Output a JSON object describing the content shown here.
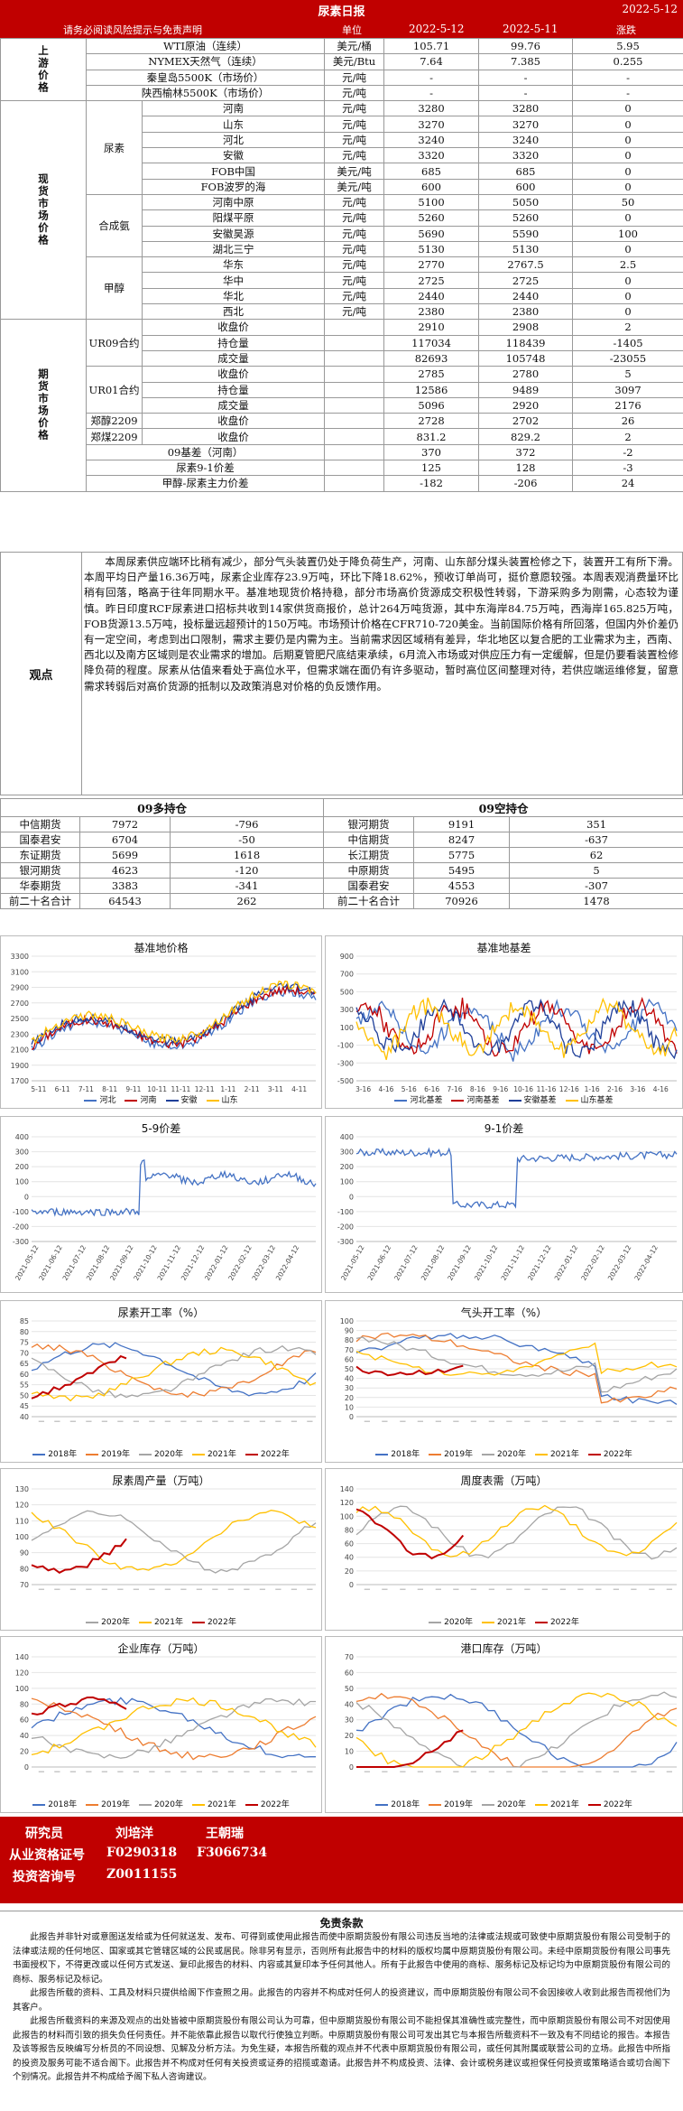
{
  "title": "尿素日报",
  "report_date": "2022-5-12",
  "header": {
    "notice": "请务必阅读风险提示与免责声明",
    "unit": "单位",
    "d1": "2022-5-12",
    "d2": "2022-5-11",
    "chg": "涨跌"
  },
  "sections": {
    "upstream": "上游价格",
    "spot": "现货市场价格",
    "futures": "期货市场价格"
  },
  "groups": {
    "urea": "尿素",
    "ammonia": "合成氨",
    "methanol": "甲醇",
    "ur09": "UR09合约",
    "ur01": "UR01合约",
    "zc2209": "郑醇2209",
    "zm2209": "郑煤2209"
  },
  "upstream_rows": [
    {
      "name": "WTI原油（连续）",
      "unit": "美元/桶",
      "v1": "105.71",
      "v2": "99.76",
      "chg": "5.95"
    },
    {
      "name": "NYMEX天然气（连续）",
      "unit": "美元/Btu",
      "v1": "7.64",
      "v2": "7.385",
      "chg": "0.255"
    },
    {
      "name": "秦皇岛5500K（市场价）",
      "unit": "元/吨",
      "v1": "-",
      "v2": "-",
      "chg": "-"
    },
    {
      "name": "陕西榆林5500K（市场价）",
      "unit": "元/吨",
      "v1": "-",
      "v2": "-",
      "chg": "-"
    }
  ],
  "urea_rows": [
    {
      "name": "河南",
      "unit": "元/吨",
      "v1": "3280",
      "v2": "3280",
      "chg": "0"
    },
    {
      "name": "山东",
      "unit": "元/吨",
      "v1": "3270",
      "v2": "3270",
      "chg": "0"
    },
    {
      "name": "河北",
      "unit": "元/吨",
      "v1": "3240",
      "v2": "3240",
      "chg": "0"
    },
    {
      "name": "安徽",
      "unit": "元/吨",
      "v1": "3320",
      "v2": "3320",
      "chg": "0"
    },
    {
      "name": "FOB中国",
      "unit": "美元/吨",
      "v1": "685",
      "v2": "685",
      "chg": "0"
    },
    {
      "name": "FOB波罗的海",
      "unit": "美元/吨",
      "v1": "600",
      "v2": "600",
      "chg": "0"
    }
  ],
  "ammonia_rows": [
    {
      "name": "河南中原",
      "unit": "元/吨",
      "v1": "5100",
      "v2": "5050",
      "chg": "50"
    },
    {
      "name": "阳煤平原",
      "unit": "元/吨",
      "v1": "5260",
      "v2": "5260",
      "chg": "0"
    },
    {
      "name": "安徽昊源",
      "unit": "元/吨",
      "v1": "5690",
      "v2": "5590",
      "chg": "100"
    },
    {
      "name": "湖北三宁",
      "unit": "元/吨",
      "v1": "5130",
      "v2": "5130",
      "chg": "0"
    }
  ],
  "methanol_rows": [
    {
      "name": "华东",
      "unit": "元/吨",
      "v1": "2770",
      "v2": "2767.5",
      "chg": "2.5"
    },
    {
      "name": "华中",
      "unit": "元/吨",
      "v1": "2725",
      "v2": "2725",
      "chg": "0"
    },
    {
      "name": "华北",
      "unit": "元/吨",
      "v1": "2440",
      "v2": "2440",
      "chg": "0"
    },
    {
      "name": "西北",
      "unit": "元/吨",
      "v1": "2380",
      "v2": "2380",
      "chg": "0"
    }
  ],
  "ur09_rows": [
    {
      "name": "收盘价",
      "unit": "",
      "v1": "2910",
      "v2": "2908",
      "chg": "2"
    },
    {
      "name": "持仓量",
      "unit": "",
      "v1": "117034",
      "v2": "118439",
      "chg": "-1405"
    },
    {
      "name": "成交量",
      "unit": "",
      "v1": "82693",
      "v2": "105748",
      "chg": "-23055"
    }
  ],
  "ur01_rows": [
    {
      "name": "收盘价",
      "unit": "",
      "v1": "2785",
      "v2": "2780",
      "chg": "5"
    },
    {
      "name": "持仓量",
      "unit": "",
      "v1": "12586",
      "v2": "9489",
      "chg": "3097"
    },
    {
      "name": "成交量",
      "unit": "",
      "v1": "5096",
      "v2": "2920",
      "chg": "2176"
    }
  ],
  "zc_row": {
    "name": "收盘价",
    "unit": "",
    "v1": "2728",
    "v2": "2702",
    "chg": "26"
  },
  "zm_row": {
    "name": "收盘价",
    "unit": "",
    "v1": "831.2",
    "v2": "829.2",
    "chg": "2"
  },
  "spread_rows": [
    {
      "name": "09基差（河南）",
      "unit": "",
      "v1": "370",
      "v2": "372",
      "chg": "-2"
    },
    {
      "name": "尿素9-1价差",
      "unit": "",
      "v1": "125",
      "v2": "128",
      "chg": "-3"
    },
    {
      "name": "甲醇-尿素主力价差",
      "unit": "",
      "v1": "-182",
      "v2": "-206",
      "chg": "24"
    }
  ],
  "commentary": {
    "label": "观点",
    "text": "本周尿素供应端环比稍有减少，部分气头装置仍处于降负荷生产，河南、山东部分煤头装置检修之下，装置开工有所下滑。本周平均日产量16.36万吨，尿素企业库存23.9万吨，环比下降18.62%，预收订单尚可，挺价意愿较强。本周表观消费量环比稍有回落，略高于往年同期水平。基准地现货价格持稳，部分市场高价货源成交积极性转弱，下游采购多为刚需，心态较为谨慎。昨日印度RCF尿素进口招标共收到14家供货商报价，总计264万吨货源，其中东海岸84.75万吨，西海岸165.825万吨，FOB货源13.5万吨，投标量远超预计的150万吨。市场预计价格在CFR710-720美金。当前国际价格有所回落，但国内外价差仍有一定空间，考虑到出口限制，需求主要仍是内需为主。当前需求因区域稍有差异，华北地区以复合肥的工业需求为主，西南、西北以及南方区域则是农业需求的增加。后期夏管肥尺底结束承续，6月流入市场或对供应压力有一定缓解，但是仍要看装置检修降负荷的程度。尿素从估值来看处于高位水平，但需求端在面仍有许多驱动，暂时高位区间整理对待，若供应端运维修复，留意需求转弱后对高价货源的抵制以及政策消息对价格的负反馈作用。"
  },
  "holdings": {
    "long_title": "09多持仓",
    "short_title": "09空持仓",
    "long": [
      {
        "name": "中信期货",
        "v": "7972",
        "chg": "-796"
      },
      {
        "name": "国泰君安",
        "v": "6704",
        "chg": "-50"
      },
      {
        "name": "东证期货",
        "v": "5699",
        "chg": "1618"
      },
      {
        "name": "银河期货",
        "v": "4623",
        "chg": "-120"
      },
      {
        "name": "华泰期货",
        "v": "3383",
        "chg": "-341"
      },
      {
        "name": "前二十名合计",
        "v": "64543",
        "chg": "262"
      }
    ],
    "short": [
      {
        "name": "银河期货",
        "v": "9191",
        "chg": "351"
      },
      {
        "name": "中信期货",
        "v": "8247",
        "chg": "-637"
      },
      {
        "name": "长江期货",
        "v": "5775",
        "chg": "62"
      },
      {
        "name": "中原期货",
        "v": "5495",
        "chg": "5"
      },
      {
        "name": "国泰君安",
        "v": "4553",
        "chg": "-307"
      },
      {
        "name": "前二十名合计",
        "v": "70926",
        "chg": "1478"
      }
    ]
  },
  "colors": {
    "red": "#c00000",
    "blue": "#4472c4",
    "orange": "#ed7d31",
    "gray": "#a5a5a5",
    "gold": "#ffc000",
    "darkblue": "#1f3f99"
  },
  "charts": {
    "basis_price": {
      "title": "基准地价格",
      "yticks": [
        "3300",
        "3100",
        "2900",
        "2700",
        "2500",
        "2300",
        "2100",
        "1900",
        "1700"
      ],
      "xticks": [
        "5-11",
        "6-11",
        "7-11",
        "8-11",
        "9-11",
        "10-11",
        "11-11",
        "12-11",
        "1-11",
        "2-11",
        "3-11",
        "4-11"
      ],
      "legend": [
        "河北",
        "河南",
        "安徽",
        "山东"
      ]
    },
    "basis_diff": {
      "title": "基准地基差",
      "yticks": [
        "900",
        "700",
        "500",
        "300",
        "100",
        "-100",
        "-300",
        "-500"
      ],
      "xticks": [
        "3-16",
        "4-16",
        "5-16",
        "6-16",
        "7-16",
        "8-16",
        "9-16",
        "10-16",
        "11-16",
        "12-16",
        "1-16",
        "2-16",
        "3-16",
        "4-16"
      ],
      "legend": [
        "河北基差",
        "河南基差",
        "安徽基差",
        "山东基差"
      ]
    },
    "spread59": {
      "title": "5-9价差",
      "yticks": [
        "400",
        "300",
        "200",
        "100",
        "0",
        "-100",
        "-200",
        "-300"
      ],
      "xticks": [
        "2021-05-12",
        "2021-06-12",
        "2021-07-12",
        "2021-08-12",
        "2021-09-12",
        "2021-10-12",
        "2021-11-12",
        "2021-12-12",
        "2022-01-12",
        "2022-02-12",
        "2022-03-12",
        "2022-04-12"
      ]
    },
    "spread91": {
      "title": "9-1价差",
      "yticks": [
        "400",
        "300",
        "200",
        "100",
        "0",
        "-100",
        "-200",
        "-300"
      ],
      "xticks": [
        "2021-05-12",
        "2021-06-12",
        "2021-07-12",
        "2021-08-12",
        "2021-09-12",
        "2021-10-12",
        "2021-11-12",
        "2021-12-12",
        "2022-01-12",
        "2022-02-12",
        "2022-03-12",
        "2022-04-12"
      ]
    },
    "urea_rate": {
      "title": "尿素开工率（%）",
      "yticks": [
        "85",
        "80",
        "75",
        "70",
        "65",
        "60",
        "55",
        "50",
        "45",
        "40"
      ],
      "legend": [
        "2018年",
        "2019年",
        "2020年",
        "2021年",
        "2022年"
      ]
    },
    "gas_rate": {
      "title": "气头开工率（%）",
      "yticks": [
        "100",
        "90",
        "80",
        "70",
        "60",
        "50",
        "40",
        "30",
        "20",
        "10",
        "0"
      ],
      "legend": [
        "2018年",
        "2019年",
        "2020年",
        "2021年",
        "2022年"
      ]
    },
    "weekly_output": {
      "title": "尿素周产量（万吨）",
      "yticks": [
        "130",
        "120",
        "110",
        "100",
        "90",
        "80",
        "70"
      ],
      "legend": [
        "2020年",
        "2021年",
        "2022年"
      ]
    },
    "weekly_demand": {
      "title": "周度表需（万吨）",
      "yticks": [
        "140",
        "120",
        "100",
        "80",
        "60",
        "40",
        "20",
        "0"
      ],
      "legend": [
        "2020年",
        "2021年",
        "2022年"
      ]
    },
    "ent_stock": {
      "title": "企业库存（万吨）",
      "yticks": [
        "140",
        "120",
        "100",
        "80",
        "60",
        "40",
        "20",
        "0"
      ],
      "legend": [
        "2018年",
        "2019年",
        "2020年",
        "2021年",
        "2022年"
      ]
    },
    "port_stock": {
      "title": "港口库存（万吨）",
      "yticks": [
        "70",
        "60",
        "50",
        "40",
        "30",
        "20",
        "10",
        "0"
      ],
      "legend": [
        "2018年",
        "2019年",
        "2020年",
        "2021年",
        "2022年"
      ]
    }
  },
  "contact": {
    "researcher_label": "研究员",
    "name1": "刘培洋",
    "name2": "王朝瑞",
    "cert_label": "从业资格证号",
    "cert1": "F0290318",
    "cert2": "F3066734",
    "consult_label": "投资咨询号",
    "consult1": "Z0011155"
  },
  "disclaimer": {
    "title": "免责条款",
    "p1": "此报告并非针对或意图送发给或为任何就送发、发布、可得到或使用此报告而使中原期货股份有限公司违反当地的法律或法规或可致使中原期货股份有限公司受制于的法律或法规的任何地区、国家或其它管辖区域的公民或居民。除非另有显示，否则所有此报告中的材料的版权均属中原期货股份有限公司。未经中原期货股份有限公司事先书面授权下，不得更改或以任何方式发送、复印此报告的材料、内容或其复印本予任何其他人。所有于此报告中使用的商标、服务标记及标记均为中原期货股份有限公司的商标、服务标记及标记。",
    "p2": "此报告所载的资料、工具及材料只提供给阁下作查照之用。此报告的内容并不构成对任何人的投资建议，而中原期货股份有限公司不会因接收人收到此报告而视他们为其客户。",
    "p3": "此报告所载资料的来源及观点的出处皆被中原期货股份有限公司认为可靠，但中原期货股份有限公司不能担保其准确性或完整性，而中原期货股份有限公司不对因使用此报告的材料而引致的损失负任何责任。并不能依靠此报告以取代行使独立判断。中原期货股份有限公司可发出其它与本报告所载资料不一致及有不同结论的报告。本报告及该等报告反映编写分析员的不同设想、见解及分析方法。为免生疑，本报告所载的观点并不代表中原期货股份有限公司，或任何其附属或联营公司的立场。此报告中所指的投资及服务可能不适合阁下。此报告并不构成对任何有关投资或证券的招揽或邀请。此报告并不构成投资、法律、会计或税务建议或担保任何投资或策略适合或切合阁下个别情况。此报告并不构成给予阁下私人咨询建议。"
  }
}
